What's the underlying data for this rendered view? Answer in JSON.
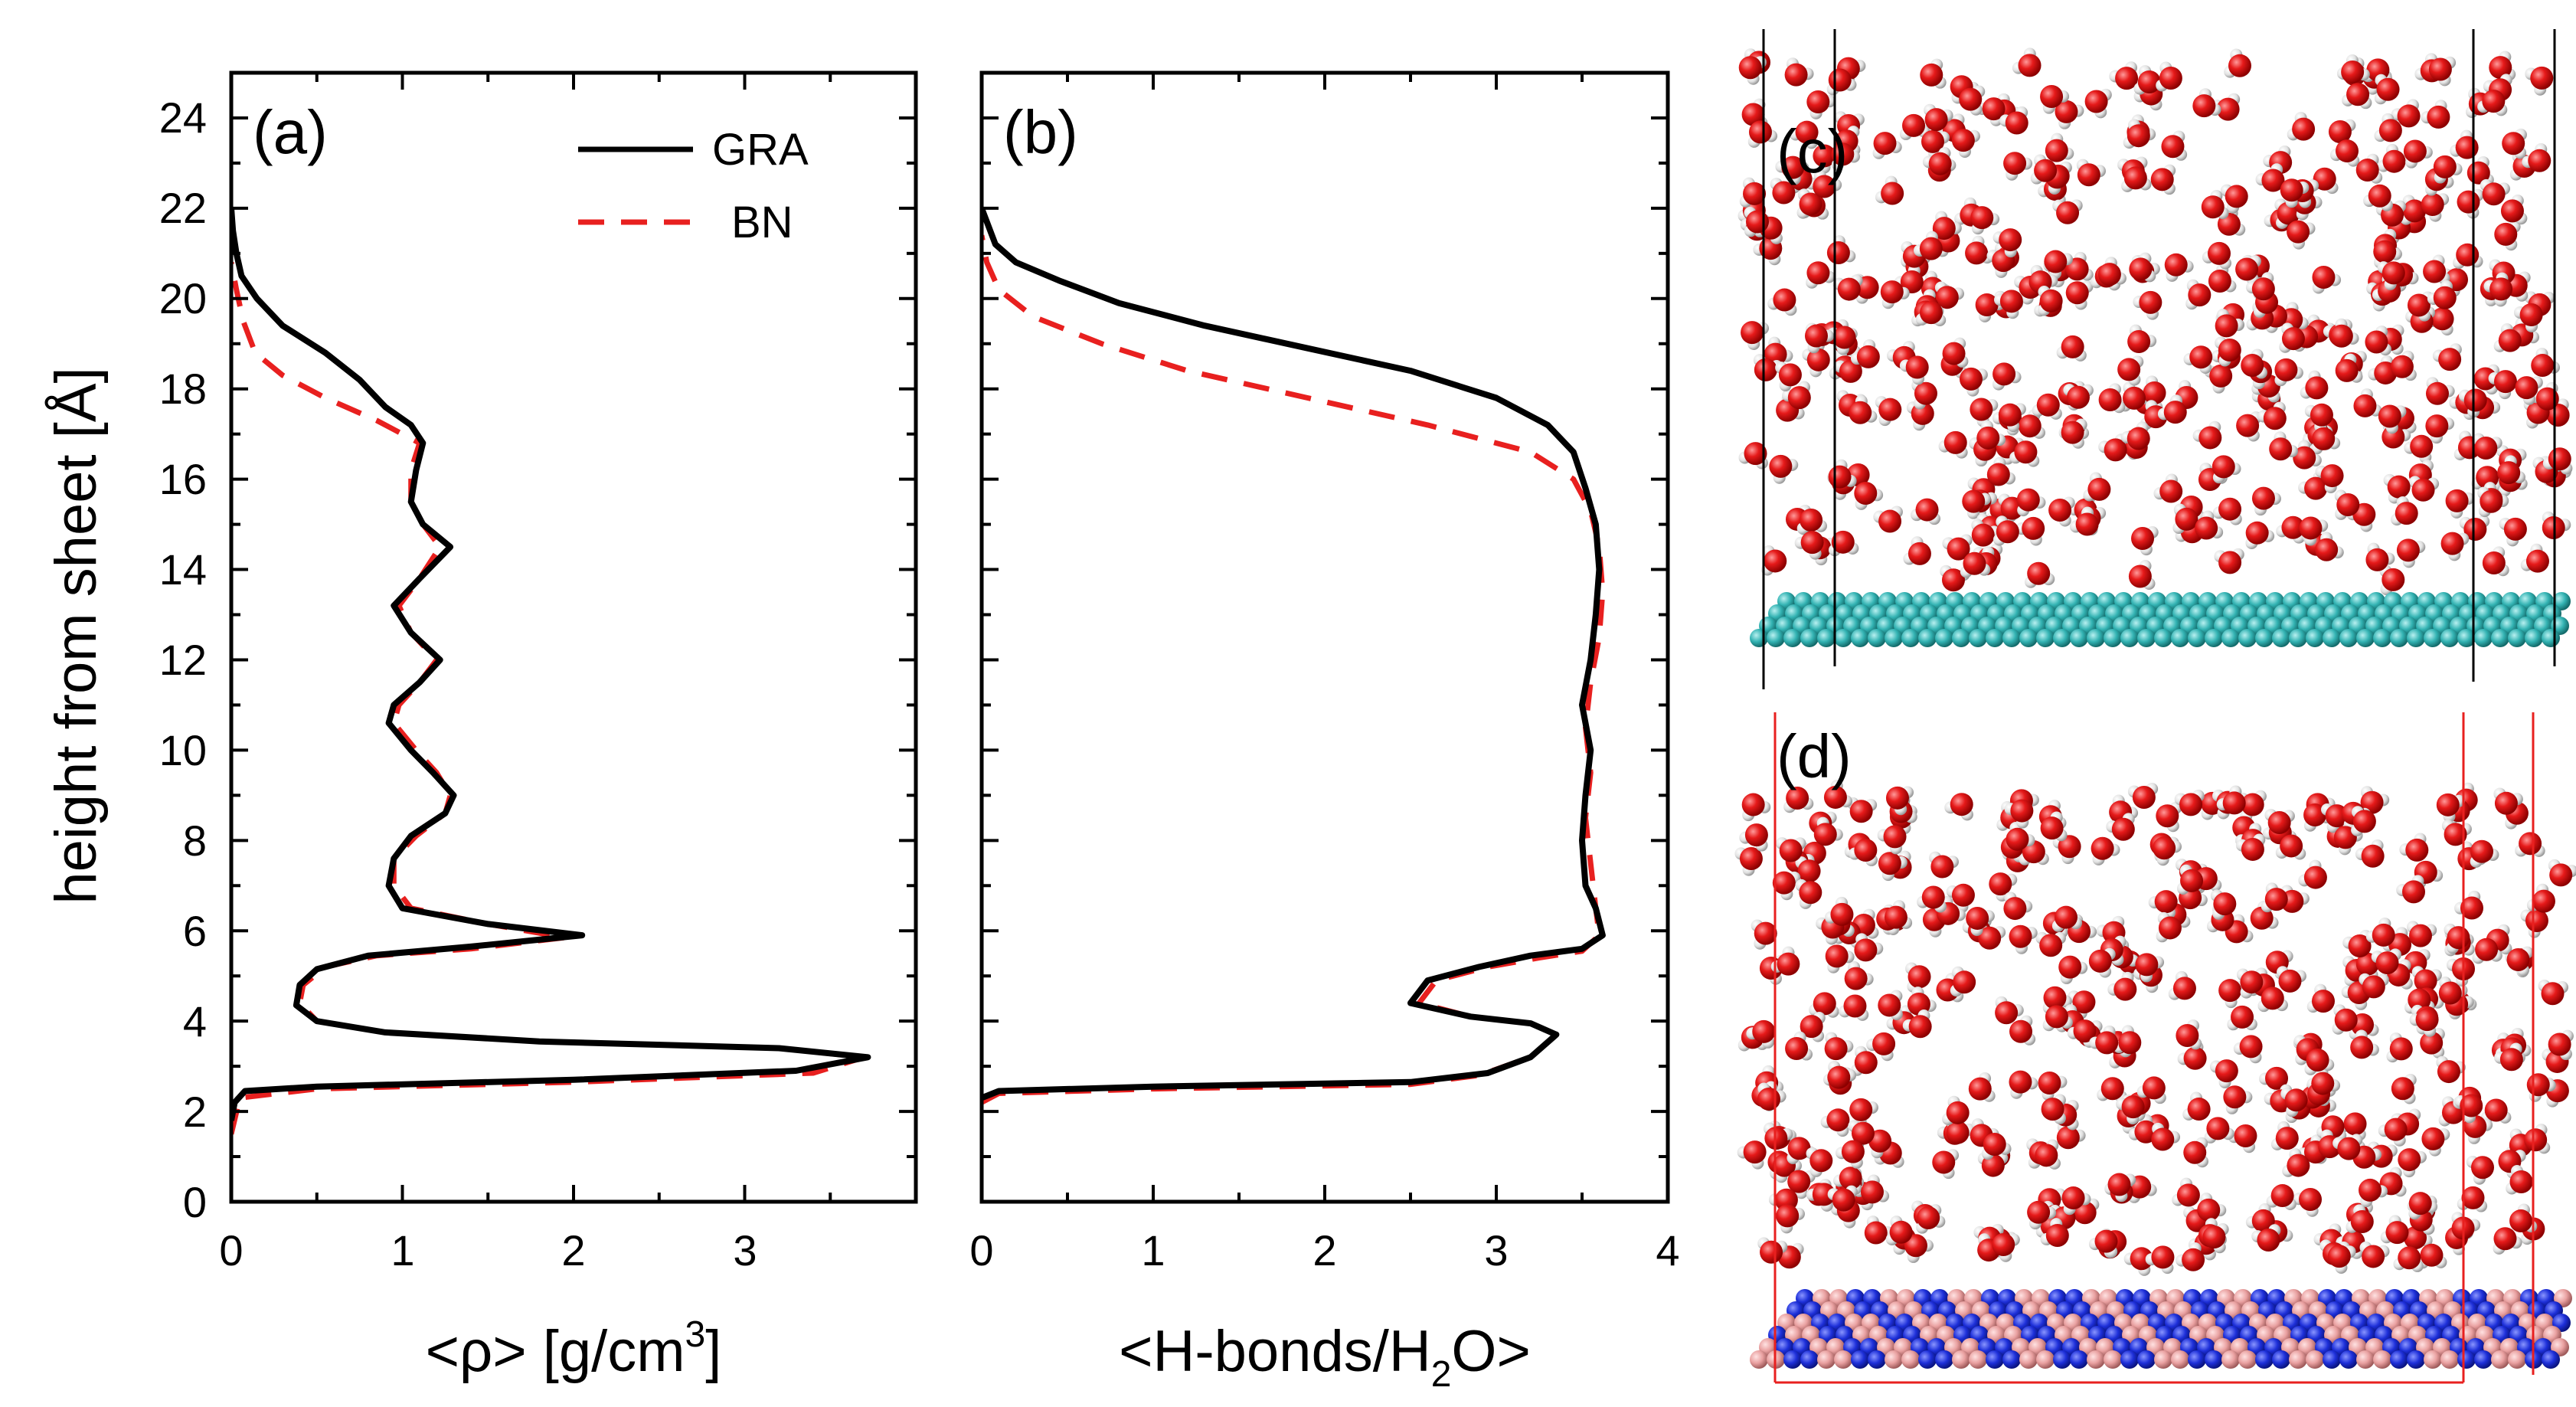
{
  "chart_data": [
    {
      "type": "line",
      "panel_label": "(a)",
      "xlabel_prefix": "<ρ> [g/cm",
      "xlabel_sup": "3",
      "xlabel_suffix": "]",
      "ylabel": "height from sheet [Å]",
      "xlim": [
        0,
        4
      ],
      "ylim": [
        0,
        25
      ],
      "xticks": [
        "0",
        "1",
        "2",
        "3"
      ],
      "yticks": [
        "0",
        "2",
        "4",
        "6",
        "8",
        "10",
        "12",
        "14",
        "16",
        "18",
        "20",
        "22",
        "24"
      ],
      "legend": {
        "position": "top-right",
        "entries": [
          "GRA",
          "BN"
        ]
      },
      "series": [
        {
          "name": "GRA",
          "color": "#000000",
          "style": "solid",
          "points": [
            [
              0.0,
              1.8
            ],
            [
              0.02,
              2.2
            ],
            [
              0.08,
              2.45
            ],
            [
              0.5,
              2.55
            ],
            [
              2.0,
              2.7
            ],
            [
              3.3,
              2.9
            ],
            [
              3.72,
              3.2
            ],
            [
              3.2,
              3.4
            ],
            [
              1.8,
              3.55
            ],
            [
              0.9,
              3.75
            ],
            [
              0.5,
              4.0
            ],
            [
              0.38,
              4.35
            ],
            [
              0.4,
              4.8
            ],
            [
              0.5,
              5.15
            ],
            [
              0.8,
              5.45
            ],
            [
              1.4,
              5.65
            ],
            [
              2.05,
              5.9
            ],
            [
              1.5,
              6.15
            ],
            [
              1.0,
              6.5
            ],
            [
              0.92,
              7.0
            ],
            [
              0.95,
              7.6
            ],
            [
              1.05,
              8.1
            ],
            [
              1.25,
              8.6
            ],
            [
              1.3,
              9.0
            ],
            [
              1.18,
              9.5
            ],
            [
              1.05,
              10.0
            ],
            [
              0.92,
              10.6
            ],
            [
              0.95,
              11.0
            ],
            [
              1.1,
              11.5
            ],
            [
              1.22,
              12.0
            ],
            [
              1.05,
              12.6
            ],
            [
              0.95,
              13.2
            ],
            [
              1.1,
              13.8
            ],
            [
              1.28,
              14.5
            ],
            [
              1.12,
              15.0
            ],
            [
              1.05,
              15.5
            ],
            [
              1.08,
              16.2
            ],
            [
              1.12,
              16.8
            ],
            [
              1.05,
              17.2
            ],
            [
              0.9,
              17.6
            ],
            [
              0.75,
              18.2
            ],
            [
              0.55,
              18.8
            ],
            [
              0.3,
              19.4
            ],
            [
              0.15,
              20.0
            ],
            [
              0.06,
              20.5
            ],
            [
              0.03,
              21.0
            ],
            [
              0.01,
              21.5
            ],
            [
              0.0,
              22.0
            ]
          ]
        },
        {
          "name": "BN",
          "color": "#e8201f",
          "style": "dashed",
          "points": [
            [
              0.0,
              1.5
            ],
            [
              0.05,
              2.3
            ],
            [
              0.5,
              2.5
            ],
            [
              2.0,
              2.65
            ],
            [
              3.4,
              2.85
            ],
            [
              3.7,
              3.2
            ],
            [
              3.2,
              3.4
            ],
            [
              1.8,
              3.55
            ],
            [
              0.9,
              3.75
            ],
            [
              0.5,
              4.0
            ],
            [
              0.4,
              4.4
            ],
            [
              0.42,
              4.8
            ],
            [
              0.55,
              5.2
            ],
            [
              0.85,
              5.45
            ],
            [
              1.4,
              5.6
            ],
            [
              1.95,
              5.85
            ],
            [
              1.5,
              6.15
            ],
            [
              1.05,
              6.5
            ],
            [
              0.95,
              7.0
            ],
            [
              0.95,
              7.6
            ],
            [
              1.08,
              8.1
            ],
            [
              1.25,
              8.6
            ],
            [
              1.28,
              9.0
            ],
            [
              1.2,
              9.5
            ],
            [
              1.08,
              10.0
            ],
            [
              0.95,
              10.6
            ],
            [
              0.98,
              11.0
            ],
            [
              1.1,
              11.5
            ],
            [
              1.2,
              12.0
            ],
            [
              1.05,
              12.6
            ],
            [
              0.98,
              13.2
            ],
            [
              1.1,
              13.8
            ],
            [
              1.22,
              14.5
            ],
            [
              1.12,
              15.0
            ],
            [
              1.05,
              15.5
            ],
            [
              1.05,
              16.2
            ],
            [
              1.1,
              16.8
            ],
            [
              0.85,
              17.3
            ],
            [
              0.55,
              17.8
            ],
            [
              0.3,
              18.3
            ],
            [
              0.14,
              18.8
            ],
            [
              0.07,
              19.5
            ],
            [
              0.03,
              20.2
            ],
            [
              0.0,
              20.8
            ]
          ]
        }
      ]
    },
    {
      "type": "line",
      "panel_label": "(b)",
      "xlabel_prefix": "<H-bonds/H",
      "xlabel_sub": "2",
      "xlabel_suffix": "O>",
      "xlim": [
        0,
        4
      ],
      "ylim": [
        0,
        25
      ],
      "xticks": [
        "0",
        "1",
        "2",
        "3",
        "4"
      ],
      "series": [
        {
          "name": "GRA",
          "color": "#000000",
          "style": "solid",
          "points": [
            [
              0.0,
              2.3
            ],
            [
              0.1,
              2.45
            ],
            [
              1.0,
              2.55
            ],
            [
              2.5,
              2.65
            ],
            [
              2.95,
              2.85
            ],
            [
              3.2,
              3.2
            ],
            [
              3.35,
              3.7
            ],
            [
              3.2,
              3.95
            ],
            [
              2.85,
              4.1
            ],
            [
              2.5,
              4.4
            ],
            [
              2.6,
              4.9
            ],
            [
              2.9,
              5.2
            ],
            [
              3.2,
              5.45
            ],
            [
              3.5,
              5.6
            ],
            [
              3.62,
              5.9
            ],
            [
              3.58,
              6.5
            ],
            [
              3.52,
              7.0
            ],
            [
              3.5,
              8.0
            ],
            [
              3.52,
              9.0
            ],
            [
              3.55,
              10.0
            ],
            [
              3.5,
              11.0
            ],
            [
              3.55,
              12.0
            ],
            [
              3.58,
              13.0
            ],
            [
              3.6,
              14.0
            ],
            [
              3.58,
              15.0
            ],
            [
              3.52,
              15.8
            ],
            [
              3.45,
              16.6
            ],
            [
              3.3,
              17.2
            ],
            [
              3.0,
              17.8
            ],
            [
              2.5,
              18.4
            ],
            [
              1.9,
              18.9
            ],
            [
              1.3,
              19.4
            ],
            [
              0.8,
              19.9
            ],
            [
              0.45,
              20.4
            ],
            [
              0.2,
              20.8
            ],
            [
              0.08,
              21.2
            ],
            [
              0.0,
              22.0
            ]
          ]
        },
        {
          "name": "BN",
          "color": "#e8201f",
          "style": "dashed",
          "points": [
            [
              0.0,
              2.2
            ],
            [
              0.1,
              2.4
            ],
            [
              1.0,
              2.5
            ],
            [
              2.5,
              2.6
            ],
            [
              2.9,
              2.8
            ],
            [
              3.2,
              3.2
            ],
            [
              3.35,
              3.7
            ],
            [
              3.2,
              3.95
            ],
            [
              2.85,
              4.1
            ],
            [
              2.55,
              4.4
            ],
            [
              2.65,
              4.9
            ],
            [
              2.95,
              5.2
            ],
            [
              3.25,
              5.4
            ],
            [
              3.5,
              5.55
            ],
            [
              3.6,
              5.9
            ],
            [
              3.58,
              6.5
            ],
            [
              3.55,
              7.5
            ],
            [
              3.52,
              8.5
            ],
            [
              3.55,
              9.5
            ],
            [
              3.52,
              10.5
            ],
            [
              3.55,
              11.5
            ],
            [
              3.6,
              12.5
            ],
            [
              3.62,
              13.5
            ],
            [
              3.6,
              14.5
            ],
            [
              3.55,
              15.3
            ],
            [
              3.45,
              16.0
            ],
            [
              3.2,
              16.6
            ],
            [
              2.6,
              17.2
            ],
            [
              1.9,
              17.8
            ],
            [
              1.2,
              18.4
            ],
            [
              0.7,
              19.0
            ],
            [
              0.3,
              19.6
            ],
            [
              0.1,
              20.2
            ],
            [
              0.03,
              20.8
            ],
            [
              0.0,
              21.4
            ]
          ]
        }
      ]
    }
  ],
  "snapshots": [
    {
      "panel_label": "(c)",
      "sheet": "GRA",
      "frame_color": "#000000",
      "sheet_colors": [
        "#33b3b3",
        "#7fd6d6"
      ]
    },
    {
      "panel_label": "(d)",
      "sheet": "BN",
      "frame_color": "#e8201f",
      "sheet_colors": [
        "#1d2fd9",
        "#e9a0a0"
      ]
    }
  ],
  "atom_colors": {
    "oxygen": "#e61a1a",
    "hydrogen": "#e6e6e6"
  }
}
